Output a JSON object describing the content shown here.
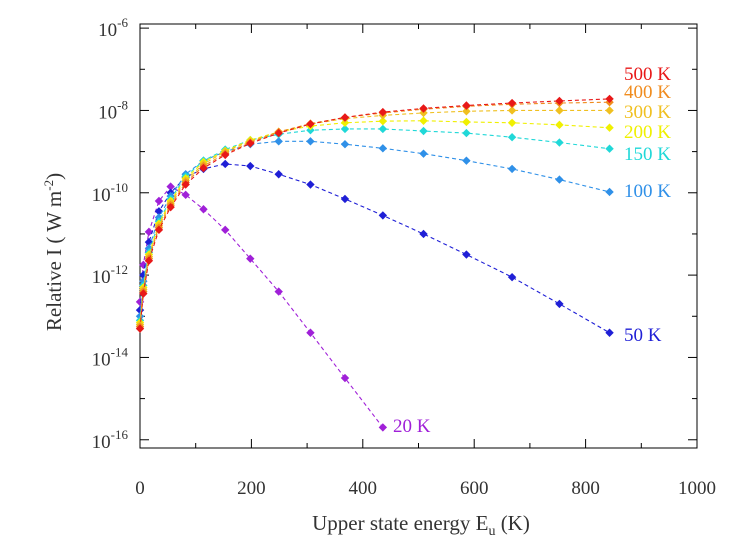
{
  "chart_data": {
    "type": "scatter",
    "title": "",
    "xlabel": "Upper state energy E",
    "xlabel_sub": "u",
    "xlabel_suffix": " (K)",
    "ylabel": "Relative I  ( W m",
    "ylabel_sup": "-2",
    "ylabel_suffix": ")",
    "xlim": [
      0,
      1000
    ],
    "ylim_log10": [
      -16.2,
      -5.9
    ],
    "x_ticks": [
      0,
      200,
      400,
      600,
      800,
      1000
    ],
    "x_tick_labels": [
      "0",
      "200",
      "400",
      "600",
      "800",
      "1000"
    ],
    "y_tick_exponents": [
      -16,
      -14,
      -12,
      -10,
      -8,
      -6
    ],
    "y_tick_labels": [
      {
        "base": "10",
        "exp": "-16"
      },
      {
        "base": "10",
        "exp": "-14"
      },
      {
        "base": "10",
        "exp": "-12"
      },
      {
        "base": "10",
        "exp": "-10"
      },
      {
        "base": "10",
        "exp": "-8"
      },
      {
        "base": "10",
        "exp": "-6"
      }
    ],
    "grid": false,
    "x": [
      0,
      6,
      16,
      34,
      55,
      82,
      114,
      153,
      198,
      249,
      306,
      368,
      436,
      509,
      586,
      668,
      753,
      843
    ],
    "series": [
      {
        "name": "20 K",
        "label": "20 K",
        "color": "#a020d8",
        "log10_values": [
          -12.65,
          -11.75,
          -10.95,
          -10.2,
          -9.85,
          -10.05,
          -10.4,
          -10.9,
          -11.6,
          -12.4,
          -13.4,
          -14.5,
          -15.7
        ]
      },
      {
        "name": "50 K",
        "label": "50 K",
        "color": "#1f1fd6",
        "log10_values": [
          -12.85,
          -12.0,
          -11.2,
          -10.45,
          -10.0,
          -9.62,
          -9.42,
          -9.3,
          -9.35,
          -9.55,
          -9.8,
          -10.15,
          -10.55,
          -11.0,
          -11.5,
          -12.05,
          -12.7,
          -13.4
        ]
      },
      {
        "name": "100 K",
        "label": "100 K",
        "color": "#2f90e8",
        "log10_values": [
          -13.0,
          -12.15,
          -11.35,
          -10.6,
          -10.08,
          -9.55,
          -9.22,
          -9.0,
          -8.82,
          -8.75,
          -8.75,
          -8.82,
          -8.92,
          -9.05,
          -9.22,
          -9.42,
          -9.68,
          -9.98
        ]
      },
      {
        "name": "150 K",
        "label": "150 K",
        "color": "#20d8d8",
        "log10_values": [
          -13.1,
          -12.25,
          -11.45,
          -10.7,
          -10.15,
          -9.6,
          -9.22,
          -8.95,
          -8.72,
          -8.58,
          -8.48,
          -8.45,
          -8.45,
          -8.5,
          -8.55,
          -8.65,
          -8.78,
          -8.93
        ]
      },
      {
        "name": "200 K",
        "label": "200 K",
        "color": "#f0f000",
        "log10_values": [
          -13.15,
          -12.3,
          -11.5,
          -10.75,
          -10.2,
          -9.65,
          -9.25,
          -8.98,
          -8.72,
          -8.52,
          -8.38,
          -8.3,
          -8.26,
          -8.25,
          -8.28,
          -8.3,
          -8.35,
          -8.42
        ]
      },
      {
        "name": "300 K",
        "label": "300 K",
        "color": "#f0c020",
        "log10_values": [
          -13.2,
          -12.35,
          -11.55,
          -10.8,
          -10.25,
          -9.7,
          -9.3,
          -9.0,
          -8.75,
          -8.52,
          -8.33,
          -8.2,
          -8.12,
          -8.06,
          -8.02,
          -8.0,
          -8.0,
          -8.0
        ]
      },
      {
        "name": "400 K",
        "label": "400 K",
        "color": "#f08c1e",
        "log10_values": [
          -13.25,
          -12.4,
          -11.6,
          -10.85,
          -10.3,
          -9.75,
          -9.35,
          -9.05,
          -8.78,
          -8.52,
          -8.32,
          -8.17,
          -8.06,
          -7.97,
          -7.9,
          -7.85,
          -7.82,
          -7.8
        ]
      },
      {
        "name": "500 K",
        "label": "500 K",
        "color": "#e81818",
        "log10_values": [
          -13.3,
          -12.45,
          -11.65,
          -10.9,
          -10.35,
          -9.8,
          -9.4,
          -9.08,
          -8.8,
          -8.55,
          -8.33,
          -8.17,
          -8.04,
          -7.95,
          -7.88,
          -7.82,
          -7.77,
          -7.72
        ]
      }
    ]
  }
}
